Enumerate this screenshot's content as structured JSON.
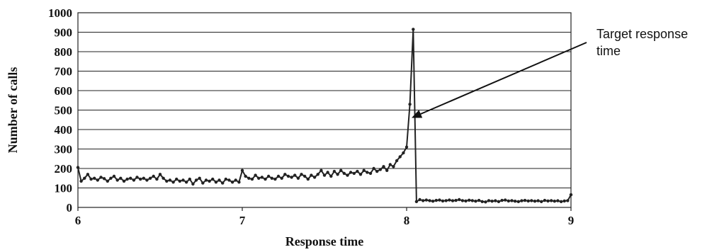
{
  "chart_data": {
    "type": "line",
    "title": "",
    "xlabel": "Response time",
    "ylabel": "Number of calls",
    "xlim": [
      6,
      9
    ],
    "ylim": [
      0,
      1000
    ],
    "x_ticks": [
      "6",
      "7",
      "8",
      "9"
    ],
    "y_ticks": [
      "0",
      "100",
      "200",
      "300",
      "400",
      "500",
      "600",
      "700",
      "800",
      "900",
      "1000"
    ],
    "grid": "horizontal",
    "legend": "none",
    "annotation": {
      "lines": [
        "Target response",
        "time"
      ],
      "points_to": {
        "x": 8.03,
        "y": 460
      }
    },
    "series": [
      {
        "color": "#222222",
        "x": [
          6.0,
          6.02,
          6.04,
          6.06,
          6.08,
          6.1,
          6.12,
          6.14,
          6.16,
          6.18,
          6.2,
          6.22,
          6.24,
          6.26,
          6.28,
          6.3,
          6.32,
          6.34,
          6.36,
          6.38,
          6.4,
          6.42,
          6.44,
          6.46,
          6.48,
          6.5,
          6.52,
          6.54,
          6.56,
          6.58,
          6.6,
          6.62,
          6.64,
          6.66,
          6.68,
          6.7,
          6.72,
          6.74,
          6.76,
          6.78,
          6.8,
          6.82,
          6.84,
          6.86,
          6.88,
          6.9,
          6.92,
          6.94,
          6.96,
          6.98,
          7.0,
          7.02,
          7.04,
          7.06,
          7.08,
          7.1,
          7.12,
          7.14,
          7.16,
          7.18,
          7.2,
          7.22,
          7.24,
          7.26,
          7.28,
          7.3,
          7.32,
          7.34,
          7.36,
          7.38,
          7.4,
          7.42,
          7.44,
          7.46,
          7.48,
          7.5,
          7.52,
          7.54,
          7.56,
          7.58,
          7.6,
          7.62,
          7.64,
          7.66,
          7.68,
          7.7,
          7.72,
          7.74,
          7.76,
          7.78,
          7.8,
          7.82,
          7.84,
          7.86,
          7.88,
          7.9,
          7.92,
          7.94,
          7.96,
          7.98,
          8.0,
          8.02,
          8.04,
          8.06,
          8.08,
          8.1,
          8.12,
          8.14,
          8.16,
          8.18,
          8.2,
          8.22,
          8.24,
          8.26,
          8.28,
          8.3,
          8.32,
          8.34,
          8.36,
          8.38,
          8.4,
          8.42,
          8.44,
          8.46,
          8.48,
          8.5,
          8.52,
          8.54,
          8.56,
          8.58,
          8.6,
          8.62,
          8.64,
          8.66,
          8.68,
          8.7,
          8.72,
          8.74,
          8.76,
          8.78,
          8.8,
          8.82,
          8.84,
          8.86,
          8.88,
          8.9,
          8.92,
          8.94,
          8.96,
          8.98,
          9.0
        ],
        "y": [
          205,
          135,
          150,
          170,
          145,
          150,
          140,
          155,
          148,
          135,
          150,
          160,
          140,
          150,
          135,
          145,
          150,
          140,
          155,
          145,
          150,
          140,
          150,
          160,
          145,
          170,
          150,
          135,
          140,
          130,
          145,
          135,
          140,
          130,
          145,
          120,
          140,
          150,
          125,
          140,
          135,
          145,
          130,
          140,
          125,
          145,
          140,
          130,
          140,
          130,
          190,
          160,
          150,
          145,
          165,
          150,
          155,
          145,
          160,
          150,
          145,
          160,
          150,
          170,
          160,
          155,
          165,
          150,
          170,
          160,
          145,
          165,
          155,
          170,
          190,
          165,
          180,
          160,
          185,
          170,
          190,
          175,
          165,
          180,
          175,
          185,
          170,
          190,
          180,
          175,
          200,
          185,
          195,
          210,
          190,
          220,
          210,
          240,
          260,
          280,
          310,
          530,
          915,
          30,
          40,
          35,
          38,
          35,
          32,
          36,
          38,
          33,
          35,
          38,
          34,
          36,
          40,
          35,
          33,
          37,
          35,
          32,
          36,
          30,
          28,
          35,
          32,
          34,
          30,
          36,
          38,
          33,
          35,
          32,
          30,
          34,
          36,
          33,
          35,
          32,
          34,
          30,
          36,
          33,
          35,
          32,
          34,
          30,
          33,
          35,
          65
        ]
      }
    ]
  }
}
